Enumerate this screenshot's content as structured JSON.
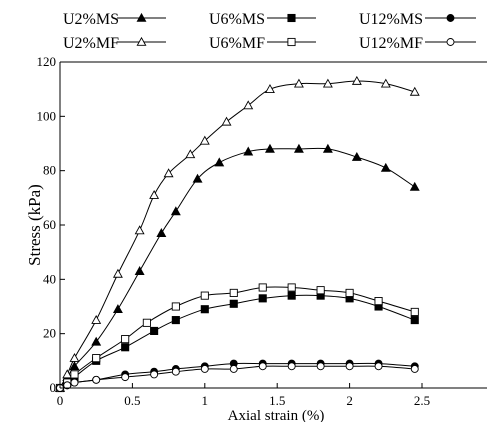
{
  "chart_data": {
    "type": "line",
    "title": "",
    "xlabel": "Axial strain (%)",
    "ylabel": "Stress (kPa)",
    "xlim": [
      0,
      2.5
    ],
    "ylim": [
      0,
      120
    ],
    "xticks": [
      0,
      0.5,
      1,
      1.5,
      2,
      2.5
    ],
    "xtick_labels": [
      "0",
      "0.5",
      "1",
      "1.5",
      "2",
      "2.5"
    ],
    "yticks": [
      0,
      20,
      40,
      60,
      80,
      100,
      120
    ],
    "ytick_labels": [
      "0",
      "20",
      "40",
      "60",
      "80",
      "100",
      "120"
    ],
    "grid": false,
    "legend_position": "top",
    "series": [
      {
        "name": "U2%MS",
        "marker": "triangle-filled",
        "x": [
          0,
          0.05,
          0.1,
          0.25,
          0.4,
          0.55,
          0.7,
          0.8,
          0.95,
          1.1,
          1.3,
          1.45,
          1.65,
          1.85,
          2.05,
          2.25,
          2.45
        ],
        "y": [
          0,
          4,
          8,
          17,
          29,
          43,
          57,
          65,
          77,
          83,
          87,
          88,
          88,
          88,
          85,
          81,
          74
        ]
      },
      {
        "name": "U2%MF",
        "marker": "triangle-open",
        "x": [
          0,
          0.05,
          0.1,
          0.25,
          0.4,
          0.55,
          0.65,
          0.75,
          0.9,
          1.0,
          1.15,
          1.3,
          1.45,
          1.65,
          1.85,
          2.05,
          2.25,
          2.45
        ],
        "y": [
          0,
          5,
          11,
          25,
          42,
          58,
          71,
          79,
          86,
          91,
          98,
          104,
          110,
          112,
          112,
          113,
          112,
          109
        ]
      },
      {
        "name": "U6%MS",
        "marker": "square-filled",
        "x": [
          0,
          0.05,
          0.1,
          0.25,
          0.45,
          0.65,
          0.8,
          1.0,
          1.2,
          1.4,
          1.6,
          1.8,
          2.0,
          2.2,
          2.45
        ],
        "y": [
          0,
          2,
          4,
          10,
          15,
          21,
          25,
          29,
          31,
          33,
          34,
          34,
          33,
          30,
          25
        ]
      },
      {
        "name": "U6%MF",
        "marker": "square-open",
        "x": [
          0,
          0.05,
          0.1,
          0.25,
          0.45,
          0.6,
          0.8,
          1.0,
          1.2,
          1.4,
          1.6,
          1.8,
          2.0,
          2.2,
          2.45
        ],
        "y": [
          0,
          2,
          5,
          11,
          18,
          24,
          30,
          34,
          35,
          37,
          37,
          36,
          35,
          32,
          28
        ]
      },
      {
        "name": "U12%MS",
        "marker": "circle-filled",
        "x": [
          0,
          0.05,
          0.1,
          0.25,
          0.45,
          0.65,
          0.8,
          1.0,
          1.2,
          1.4,
          1.6,
          1.8,
          2.0,
          2.2,
          2.45
        ],
        "y": [
          0,
          1,
          2,
          3,
          5,
          6,
          7,
          8,
          9,
          9,
          9,
          9,
          9,
          9,
          8
        ]
      },
      {
        "name": "U12%MF",
        "marker": "circle-open",
        "x": [
          0,
          0.05,
          0.1,
          0.25,
          0.45,
          0.65,
          0.8,
          1.0,
          1.2,
          1.4,
          1.6,
          1.8,
          2.0,
          2.2,
          2.45
        ],
        "y": [
          0,
          1,
          2,
          3,
          4,
          5,
          6,
          7,
          7,
          8,
          8,
          8,
          8,
          8,
          7
        ]
      }
    ]
  }
}
